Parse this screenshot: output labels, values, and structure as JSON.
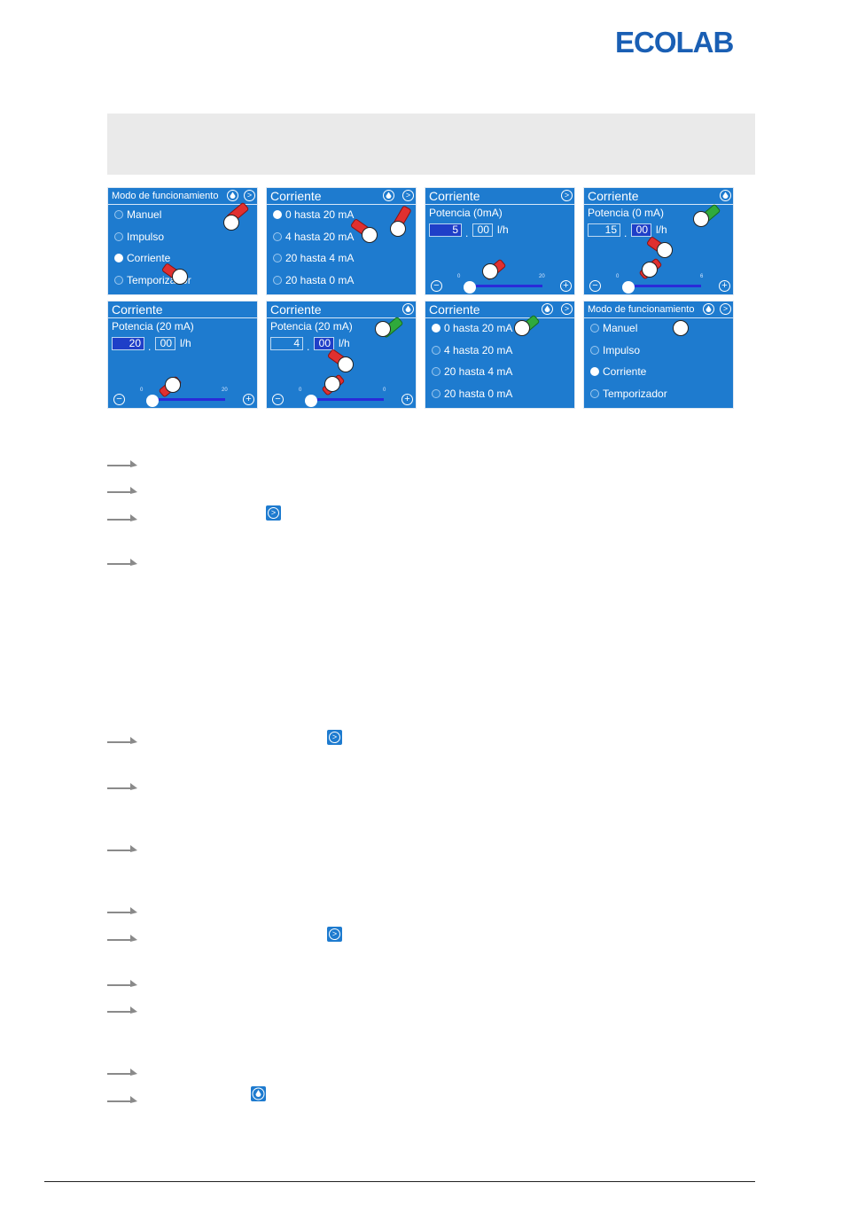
{
  "brand": {
    "logo_text": "ECOLAB",
    "color": "#1a5fb4"
  },
  "screens": {
    "s1": {
      "title": "Modo de funcionamiento",
      "options": [
        "Manuel",
        "Impulso",
        "Corriente",
        "Temporizador"
      ],
      "selected": 2
    },
    "s2": {
      "title": "Corriente",
      "options": [
        "0 hasta 20 mA",
        "4 hasta 20 mA",
        "20 hasta 4 mA",
        "20 hasta 0 mA"
      ],
      "selected": 0
    },
    "s3": {
      "title": "Corriente",
      "subtitle": "Potencia (0mA)",
      "int_value": "5",
      "dec_value": "00",
      "unit": "l/h",
      "tick_min": "0",
      "tick_max": "20",
      "slider_fraction": 0.0
    },
    "s4": {
      "title": "Corriente",
      "subtitle": "Potencia (0 mA)",
      "int_value": "15",
      "dec_value": "00",
      "unit": "l/h",
      "tick_min": "0",
      "tick_max": "6",
      "slider_fraction": 0.0
    },
    "s5": {
      "title": "Corriente",
      "subtitle": "Potencia (20 mA)",
      "int_value": "20",
      "dec_value": "00",
      "unit": "l/h",
      "tick_min": "0",
      "tick_max": "20",
      "slider_fraction": 0.0
    },
    "s6": {
      "title": "Corriente",
      "subtitle": "Potencia (20 mA)",
      "int_value": "4",
      "dec_value": "00",
      "unit": "l/h",
      "tick_min": "0",
      "tick_max": "0",
      "slider_fraction": 0.0
    },
    "s7": {
      "title": "Corriente",
      "options": [
        "0 hasta 20 mA",
        "4 hasta 20 mA",
        "20 hasta 4 mA",
        "20 hasta 0 mA"
      ],
      "selected": 0
    },
    "s8": {
      "title": "Modo de funcionamiento",
      "options": [
        "Manuel",
        "Impulso",
        "Corriente",
        "Temporizador"
      ],
      "selected": 2
    }
  },
  "icons": {
    "next": "chevron-right-icon",
    "home": "drop-icon",
    "minus": "minus-icon",
    "plus": "plus-icon",
    "step": "arrow-right-icon"
  },
  "colors": {
    "screen_bg": "#1e7bcf",
    "selected_field": "#1f3fc8",
    "hand_red": "#e03030",
    "hand_green": "#2faa3c"
  }
}
